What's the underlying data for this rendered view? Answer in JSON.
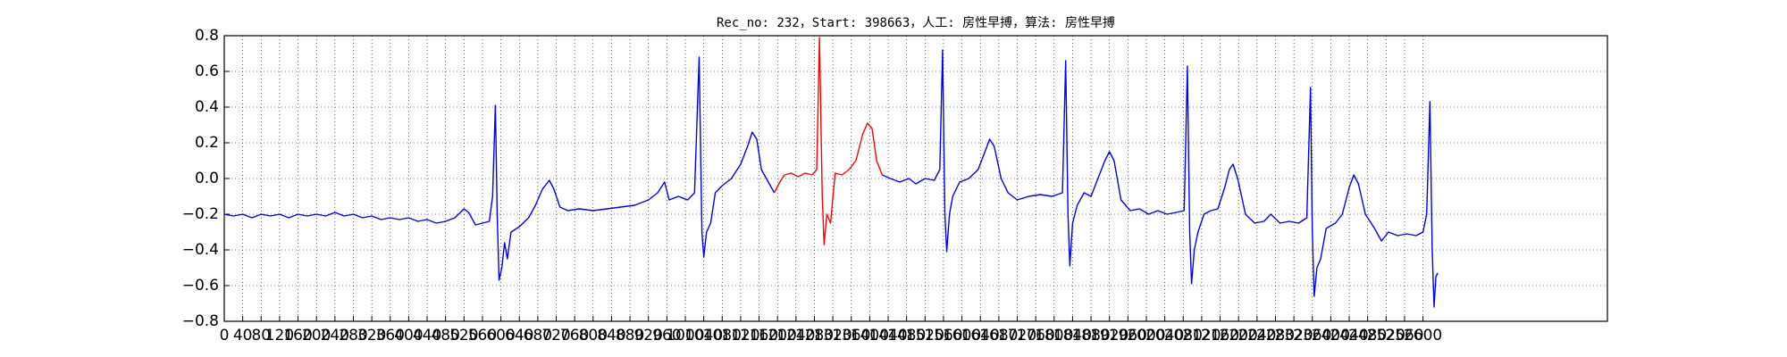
{
  "chart_data": {
    "type": "line",
    "title": "Rec_no: 232，Start: 398663，人工: 房性早搏，算法: 房性早搏",
    "xlim": [
      0,
      3000
    ],
    "xticks": [
      0,
      40,
      80,
      120,
      160,
      200,
      240,
      280,
      320,
      360,
      400,
      440,
      480,
      520,
      560,
      600,
      640,
      680,
      720,
      760,
      800,
      840,
      880,
      920,
      960,
      1000,
      1040,
      1080,
      1120,
      1160,
      1200,
      1240,
      1280,
      1320,
      1360,
      1400,
      1440,
      1480,
      1520,
      1560,
      1600,
      1640,
      1680,
      1720,
      1760,
      1800,
      1840,
      1880,
      1920,
      1960,
      2000,
      2040,
      2080,
      2120,
      2160,
      2200,
      2240,
      2280,
      2320,
      2360,
      2400,
      2440,
      2480,
      2520,
      2560,
      2600
    ],
    "ylim": [
      -0.8,
      0.8
    ],
    "yticks": [
      {
        "value": -0.8,
        "label": "−0.8"
      },
      {
        "value": -0.6,
        "label": "−0.6"
      },
      {
        "value": -0.4,
        "label": "−0.4"
      },
      {
        "value": -0.2,
        "label": "−0.2"
      },
      {
        "value": 0,
        "label": "0.0"
      },
      0.2,
      0.4,
      0.6,
      0.8
    ],
    "grid": true,
    "series": [
      {
        "color": "#0000ff",
        "x": [
          0,
          20,
          40,
          60,
          80,
          100,
          120,
          140,
          160,
          180,
          200,
          220,
          240,
          260,
          280,
          300,
          320,
          340,
          360,
          380,
          400,
          420,
          440,
          460,
          480,
          500,
          520,
          530,
          545,
          560,
          575,
          582,
          588,
          592,
          596,
          602,
          608,
          614,
          622,
          640,
          660,
          675,
          690,
          705,
          715,
          728,
          745,
          770,
          800,
          830,
          860,
          890,
          920,
          940,
          955,
          965,
          985,
          1005,
          1020,
          1030,
          1036,
          1040,
          1046,
          1055,
          1065,
          1080,
          1100,
          1120,
          1135,
          1145,
          1155,
          1165,
          1180,
          1193,
          1300,
          1427,
          1445,
          1465,
          1485,
          1500,
          1520,
          1540,
          1552,
          1558,
          1563,
          1567,
          1573,
          1580,
          1595,
          1615,
          1635,
          1650,
          1660,
          1670,
          1685,
          1700,
          1720,
          1745,
          1770,
          1795,
          1818,
          1825,
          1830,
          1834,
          1840,
          1850,
          1865,
          1880,
          1895,
          1910,
          1920,
          1930,
          1945,
          1965,
          1985,
          2005,
          2025,
          2045,
          2065,
          2082,
          2089,
          2094,
          2098,
          2104,
          2112,
          2125,
          2140,
          2155,
          2170,
          2180,
          2188,
          2198,
          2215,
          2235,
          2255,
          2270,
          2290,
          2310,
          2330,
          2348,
          2356,
          2360,
          2364,
          2370,
          2378,
          2390,
          2410,
          2425,
          2440,
          2450,
          2460,
          2475,
          2495,
          2510,
          2525,
          2545,
          2565,
          2585,
          2600,
          2608,
          2615,
          2620,
          2624,
          2628,
          2632
        ],
        "values": [
          -0.2,
          -0.21,
          -0.2,
          -0.22,
          -0.2,
          -0.21,
          -0.2,
          -0.22,
          -0.2,
          -0.21,
          -0.2,
          -0.21,
          -0.19,
          -0.21,
          -0.2,
          -0.22,
          -0.21,
          -0.23,
          -0.22,
          -0.23,
          -0.22,
          -0.24,
          -0.23,
          -0.25,
          -0.24,
          -0.22,
          -0.17,
          -0.19,
          -0.26,
          -0.25,
          -0.24,
          -0.1,
          0.41,
          -0.2,
          -0.57,
          -0.5,
          -0.36,
          -0.45,
          -0.3,
          -0.27,
          -0.22,
          -0.15,
          -0.06,
          -0.01,
          -0.06,
          -0.16,
          -0.18,
          -0.17,
          -0.18,
          -0.17,
          -0.16,
          -0.15,
          -0.12,
          -0.08,
          -0.02,
          -0.12,
          -0.1,
          -0.12,
          -0.08,
          0.68,
          -0.3,
          -0.44,
          -0.3,
          -0.25,
          -0.08,
          -0.04,
          0.0,
          0.08,
          0.18,
          0.26,
          0.22,
          0.05,
          -0.02,
          -0.08,
          null,
          0.02,
          0.0,
          -0.02,
          0.0,
          -0.03,
          0.0,
          -0.01,
          0.05,
          0.72,
          -0.2,
          -0.41,
          -0.2,
          -0.1,
          -0.02,
          0.0,
          0.05,
          0.15,
          0.22,
          0.18,
          0.0,
          -0.08,
          -0.12,
          -0.1,
          -0.09,
          -0.1,
          -0.08,
          0.66,
          -0.2,
          -0.49,
          -0.25,
          -0.15,
          -0.08,
          -0.1,
          0.0,
          0.1,
          0.15,
          0.1,
          -0.12,
          -0.18,
          -0.17,
          -0.2,
          -0.18,
          -0.2,
          -0.19,
          -0.18,
          0.63,
          -0.3,
          -0.59,
          -0.4,
          -0.3,
          -0.2,
          -0.18,
          -0.17,
          -0.05,
          0.05,
          0.08,
          0.0,
          -0.2,
          -0.25,
          -0.24,
          -0.2,
          -0.25,
          -0.24,
          -0.25,
          -0.22,
          0.51,
          -0.3,
          -0.66,
          -0.5,
          -0.45,
          -0.28,
          -0.25,
          -0.2,
          -0.05,
          0.02,
          -0.03,
          -0.2,
          -0.28,
          -0.35,
          -0.3,
          -0.32,
          -0.31,
          -0.32,
          -0.3,
          -0.2,
          0.43,
          -0.4,
          -0.72,
          -0.55,
          -0.53
        ]
      },
      {
        "color": "#ff0000",
        "x": [
          1193,
          1205,
          1215,
          1230,
          1245,
          1260,
          1275,
          1285,
          1291,
          1297,
          1301,
          1307,
          1315,
          1325,
          1340,
          1355,
          1370,
          1385,
          1395,
          1405,
          1415,
          1427
        ],
        "values": [
          -0.08,
          -0.02,
          0.02,
          0.03,
          0.01,
          0.03,
          0.02,
          0.05,
          0.79,
          -0.1,
          -0.37,
          -0.2,
          -0.25,
          0.03,
          0.02,
          0.05,
          0.1,
          0.25,
          0.31,
          0.28,
          0.1,
          0.02
        ]
      }
    ]
  }
}
